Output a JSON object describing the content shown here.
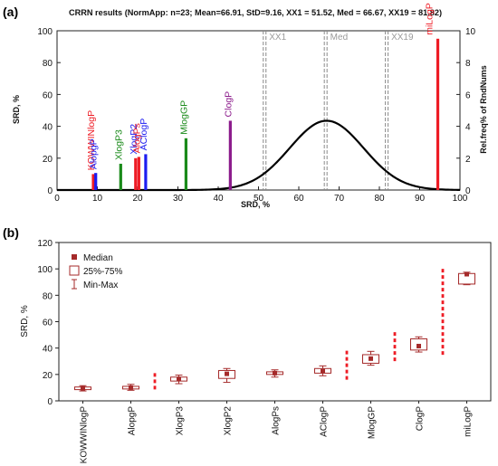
{
  "panels": [
    "(a)",
    "(b)"
  ],
  "chart_data": [
    {
      "type": "bar",
      "title": "CRRN results (NormApp: n=23; Mean=66.91, StD=9.16, XX1 = 51.52, Med = 66.67, XX19 = 81.82)",
      "xlabel": "SRD, %",
      "ylabel": "SRD, %",
      "y2label": "Rel.freq% of RndNums",
      "xlim": [
        0,
        100
      ],
      "ylim": [
        0,
        100
      ],
      "y2lim": [
        0,
        10
      ],
      "x_ticks": [
        "0",
        "10",
        "20",
        "30",
        "40",
        "50",
        "60",
        "70",
        "80",
        "90",
        "100"
      ],
      "y_ticks": [
        "0",
        "20",
        "40",
        "60",
        "80",
        "100"
      ],
      "y2_ticks": [
        "0",
        "2",
        "4",
        "6",
        "8",
        "10"
      ],
      "grid": false,
      "series": [
        {
          "name": "KOWWINlogP",
          "x": 9.0,
          "value": 10.0,
          "color": "#ee1c25"
        },
        {
          "name": "AlopgP",
          "x": 9.6,
          "value": 10.7,
          "color": "#1c1cf0"
        },
        {
          "name": "XlogP3",
          "x": 15.8,
          "value": 16.5,
          "color": "#1a8a1a"
        },
        {
          "name": "XlogP2",
          "x": 19.5,
          "value": 20.0,
          "color": "#ee1c25"
        },
        {
          "name": "AlogPs",
          "x": 20.3,
          "value": 20.8,
          "color": "#ee1c25"
        },
        {
          "name": "AClogP",
          "x": 22.0,
          "value": 22.5,
          "color": "#1c1cf0"
        },
        {
          "name": "MlogGP",
          "x": 32.0,
          "value": 32.5,
          "color": "#1a8a1a"
        },
        {
          "name": "ClogP",
          "x": 43.0,
          "value": 43.5,
          "color": "#8b1a8b"
        },
        {
          "name": "miLogP",
          "x": 94.5,
          "value": 95.0,
          "color": "#ee1c25"
        }
      ],
      "label_colors": {
        "KOWWINlogP": "#ee1c25",
        "AlopgP": "#1c1cf0",
        "XlogP3": "#1a8a1a",
        "XlogP2": "#1c1cf0",
        "AlogPs": "#ee1c25",
        "AClogP": "#1c1cf0",
        "MlogGP": "#1a8a1a",
        "ClogP": "#8b1a8b",
        "miLogP": "#ee1c25"
      },
      "normal_curve": {
        "mean": 66.91,
        "std": 9.16,
        "peak_rel_freq": 4.35
      },
      "reference_lines": [
        {
          "label": "XX1",
          "x": 51.52
        },
        {
          "label": "Med",
          "x": 66.67
        },
        {
          "label": "XX19",
          "x": 81.82
        }
      ]
    },
    {
      "type": "boxplot",
      "ylabel": "SRD, %",
      "ylim": [
        0,
        120
      ],
      "y_ticks": [
        "0",
        "20",
        "40",
        "60",
        "80",
        "100",
        "120"
      ],
      "legend": [
        "Median",
        "25%-75%",
        "Min-Max"
      ],
      "legend_position": "top-left",
      "box_color": "#a52a2a",
      "categories": [
        "KOWWINlogP",
        "AlopgP",
        "XlogP3",
        "XlogP2",
        "AlogPs",
        "AClogP",
        "MlogGP",
        "ClogP",
        "miLogP"
      ],
      "boxes": [
        {
          "min": 7.5,
          "q1": 8.5,
          "median": 9.5,
          "q3": 10.5,
          "max": 11.5
        },
        {
          "min": 8.0,
          "q1": 9.0,
          "median": 10.0,
          "q3": 11.0,
          "max": 12.5
        },
        {
          "min": 13.0,
          "q1": 15.0,
          "median": 16.5,
          "q3": 18.0,
          "max": 19.5
        },
        {
          "min": 14.0,
          "q1": 17.0,
          "median": 20.5,
          "q3": 23.0,
          "max": 24.5
        },
        {
          "min": 18.0,
          "q1": 20.0,
          "median": 21.0,
          "q3": 22.0,
          "max": 23.5
        },
        {
          "min": 19.0,
          "q1": 21.0,
          "median": 22.5,
          "q3": 24.5,
          "max": 26.5
        },
        {
          "min": 27.0,
          "q1": 28.5,
          "median": 32.0,
          "q3": 35.0,
          "max": 37.5
        },
        {
          "min": 37.0,
          "q1": 38.5,
          "median": 41.5,
          "q3": 47.0,
          "max": 48.5
        },
        {
          "min": 88.0,
          "q1": 88.5,
          "median": 96.0,
          "q3": 96.5,
          "max": 97.5
        }
      ],
      "dashed_ranges": [
        {
          "between": [
            "AlopgP",
            "XlogP3"
          ],
          "from": 8.0,
          "to": 21.0
        },
        {
          "between": [
            "AClogP",
            "MlogGP"
          ],
          "from": 16.0,
          "to": 38.0
        },
        {
          "between": [
            "MlogGP",
            "ClogP"
          ],
          "from": 30.0,
          "to": 52.0
        },
        {
          "between": [
            "ClogP",
            "miLogP"
          ],
          "from": 34.0,
          "to": 100.0
        }
      ]
    }
  ]
}
